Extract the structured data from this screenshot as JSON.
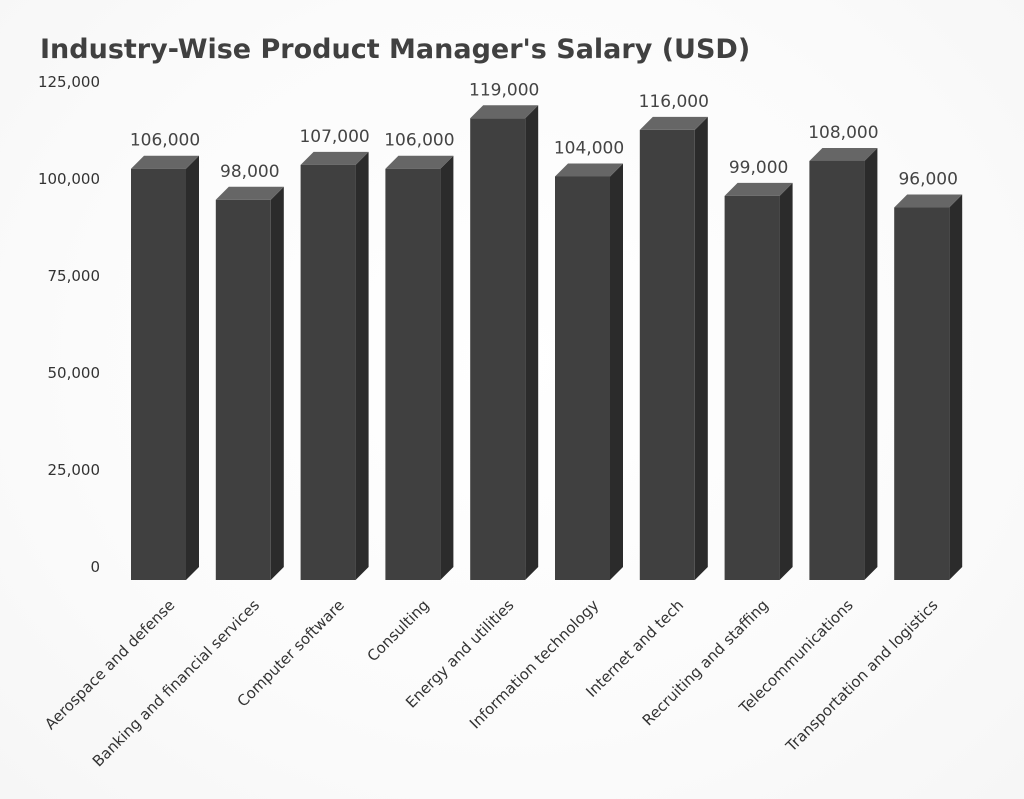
{
  "chart_data": {
    "type": "bar",
    "title": "Industry-Wise Product Manager's Salary (USD)",
    "xlabel": "",
    "ylabel": "",
    "ylim": [
      0,
      125000
    ],
    "yticks": [
      "0",
      "25,000",
      "50,000",
      "75,000",
      "100,000",
      "125,000"
    ],
    "ytick_values": [
      0,
      25000,
      50000,
      75000,
      100000,
      125000
    ],
    "categories": [
      "Aerospace and defense",
      "Banking and financial services",
      "Computer software",
      "Consulting",
      "Energy and utilities",
      "Information technology",
      "Internet and tech",
      "Recruiting and staffing",
      "Telecommunications",
      "Transportation and logistics"
    ],
    "values": [
      106000,
      98000,
      107000,
      106000,
      119000,
      104000,
      116000,
      99000,
      108000,
      96000
    ],
    "data_labels": [
      "106,000",
      "98,000",
      "107,000",
      "106,000",
      "119,000",
      "104,000",
      "116,000",
      "99,000",
      "108,000",
      "96,000"
    ],
    "grid": false,
    "legend": "none",
    "style": "3d-column"
  },
  "colors": {
    "bar_front": "#404040",
    "bar_side": "#2b2b2b",
    "bar_top": "#666666",
    "title": "#404040",
    "text": "#333333"
  }
}
